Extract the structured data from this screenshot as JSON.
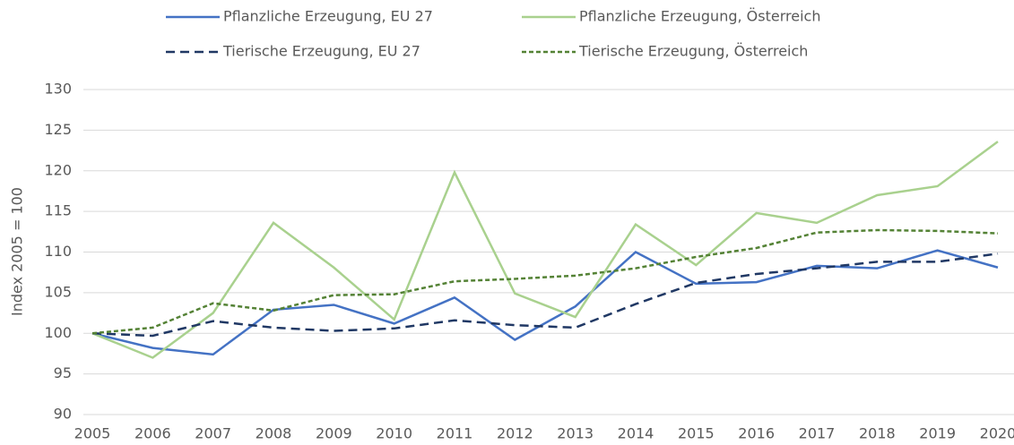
{
  "chart_data": {
    "type": "line",
    "y_label": "Index 2005 = 100",
    "categories": [
      "2005",
      "2006",
      "2007",
      "2008",
      "2009",
      "2010",
      "2011",
      "2012",
      "2013",
      "2014",
      "2015",
      "2016",
      "2017",
      "2018",
      "2019",
      "2020"
    ],
    "series": [
      {
        "name": "Pflanzliche Erzeugung, EU 27",
        "color": "#4472c4",
        "line_style": "solid",
        "values": [
          100,
          98.2,
          97.4,
          102.9,
          103.5,
          101.2,
          104.4,
          99.2,
          103.3,
          110.0,
          106.1,
          106.3,
          108.3,
          108.0,
          110.2,
          108.1
        ]
      },
      {
        "name": "Pflanzliche Erzeugung, Österreich",
        "color": "#a9d18e",
        "line_style": "solid",
        "values": [
          100,
          97.0,
          102.5,
          113.6,
          108.1,
          101.7,
          119.8,
          104.9,
          102.0,
          113.4,
          108.4,
          114.8,
          113.6,
          117.0,
          118.1,
          123.6
        ]
      },
      {
        "name": "Tierische Erzeugung, EU 27",
        "color": "#203864",
        "line_style": "dashed",
        "values": [
          100,
          99.7,
          101.5,
          100.7,
          100.3,
          100.6,
          101.6,
          101.0,
          100.7,
          103.6,
          106.2,
          107.3,
          108.0,
          108.8,
          108.8,
          109.8
        ]
      },
      {
        "name": "Tierische Erzeugung, Österreich",
        "color": "#548235",
        "line_style": "dotted",
        "values": [
          100,
          100.7,
          103.7,
          102.8,
          104.7,
          104.8,
          106.4,
          106.7,
          107.1,
          108.0,
          109.4,
          110.5,
          112.4,
          112.7,
          112.6,
          112.3
        ]
      }
    ],
    "ylim": [
      90,
      130
    ],
    "yticks": [
      90,
      95,
      100,
      105,
      110,
      115,
      120,
      125,
      130
    ],
    "grid": true,
    "legend": "top"
  }
}
